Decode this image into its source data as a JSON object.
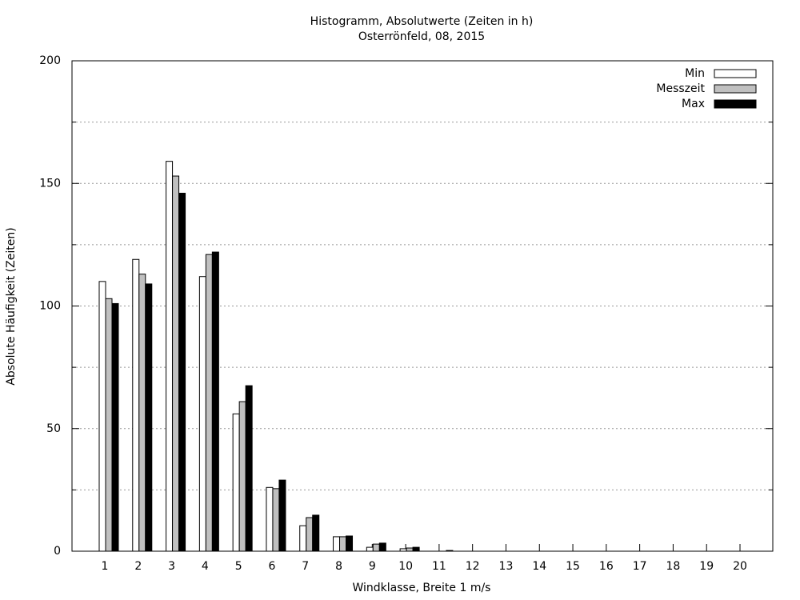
{
  "chart_data": {
    "type": "bar",
    "title": "Histogramm, Absolutwerte (Zeiten in h)",
    "subtitle": "Osterrönfeld, 08, 2015",
    "x_label": "Windklasse, Breite 1 m/s",
    "y_label": "Absolute Häufigkeit (Zeiten)",
    "categories": [
      "1",
      "2",
      "3",
      "4",
      "5",
      "6",
      "7",
      "8",
      "9",
      "10",
      "11",
      "12",
      "13",
      "14",
      "15",
      "16",
      "17",
      "18",
      "19",
      "20"
    ],
    "series": [
      {
        "name": "Min",
        "color": "#ffffff",
        "values": [
          110,
          119,
          159,
          112,
          56,
          26,
          10.4,
          5.9,
          1.6,
          1,
          0,
          0,
          0,
          0,
          0,
          0,
          0,
          0,
          0,
          0
        ]
      },
      {
        "name": "Messzeit",
        "color": "#c0c0c0",
        "values": [
          103,
          113,
          153,
          121,
          61,
          25.5,
          13.7,
          5.9,
          2.9,
          1.3,
          0,
          0,
          0,
          0,
          0,
          0,
          0,
          0,
          0,
          0
        ]
      },
      {
        "name": "Max",
        "color": "#000000",
        "values": [
          101,
          109,
          146,
          122,
          67.5,
          29,
          14.7,
          6.2,
          3.3,
          1.6,
          0.3,
          0,
          0,
          0,
          0,
          0,
          0,
          0,
          0,
          0
        ]
      }
    ],
    "ylim": [
      0,
      200
    ],
    "yticks": [
      0,
      50,
      100,
      150,
      200
    ],
    "yminorticks": [
      25,
      75,
      125,
      175
    ],
    "grid": true,
    "legend": "top-right"
  }
}
